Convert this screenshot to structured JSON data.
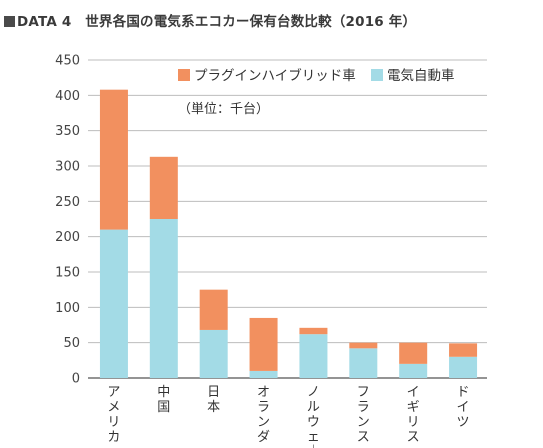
{
  "header": {
    "label": "DATA 4",
    "title": "世界各国の電気系エコカー保有台数比較（2016 年）"
  },
  "chart_data": {
    "type": "bar",
    "stacked": true,
    "title": "世界各国の電気系エコカー保有台数比較（2016 年）",
    "unit_note": "（単位：千台）",
    "categories": [
      "アメリカ",
      "中国",
      "日本",
      "オランダ",
      "ノルウェー",
      "フランス",
      "イギリス",
      "ドイツ"
    ],
    "series": [
      {
        "name": "電気自動車",
        "color": "#a3dbe6",
        "values": [
          210,
          225,
          68,
          10,
          62,
          42,
          20,
          30
        ]
      },
      {
        "name": "プラグインハイブリッド車",
        "color": "#f2905f",
        "values": [
          198,
          88,
          57,
          75,
          9,
          8,
          30,
          19
        ]
      }
    ],
    "legend_order": [
      "プラグインハイブリッド車",
      "電気自動車"
    ],
    "legend_position": "top-right",
    "ylim": [
      0,
      450
    ],
    "yticks": [
      0,
      50,
      100,
      150,
      200,
      250,
      300,
      350,
      400,
      450
    ],
    "grid": true,
    "xlabel": "",
    "ylabel": ""
  }
}
